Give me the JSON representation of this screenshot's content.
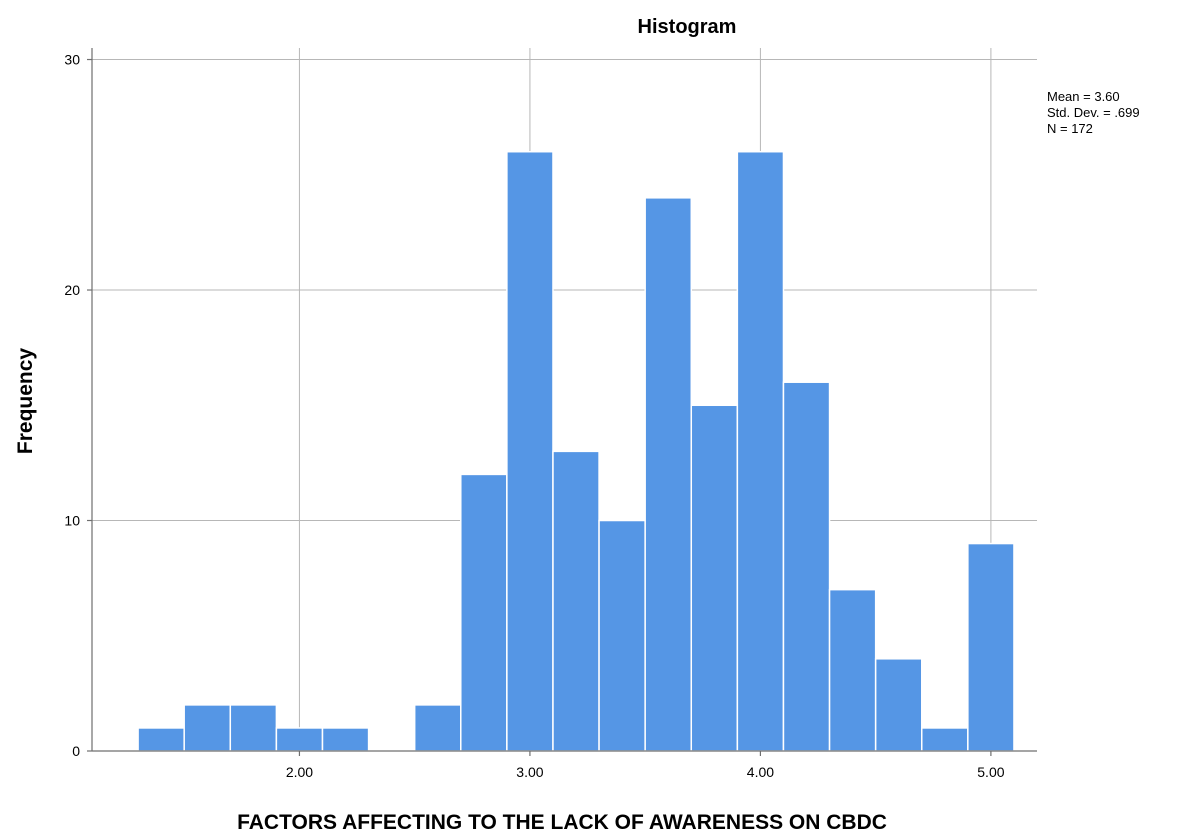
{
  "chart_data": {
    "type": "bar",
    "title": "Histogram",
    "xlabel": "FACTORS AFFECTING TO THE LACK OF AWARENESS ON CBDC",
    "ylabel": "Frequency",
    "bar_color": "#5596e5",
    "grid": true,
    "xlim": [
      1.1,
      5.2
    ],
    "ylim": [
      0,
      30.5
    ],
    "x_ticks": [
      {
        "value": 2,
        "label": "2.00"
      },
      {
        "value": 3,
        "label": "3.00"
      },
      {
        "value": 4,
        "label": "4.00"
      },
      {
        "value": 5,
        "label": "5.00"
      }
    ],
    "y_ticks": [
      {
        "value": 0,
        "label": "0"
      },
      {
        "value": 10,
        "label": "10"
      },
      {
        "value": 20,
        "label": "20"
      },
      {
        "value": 30,
        "label": "30"
      }
    ],
    "bin_width": 0.2,
    "bins": [
      {
        "start": 1.3,
        "count": 1
      },
      {
        "start": 1.5,
        "count": 2
      },
      {
        "start": 1.7,
        "count": 2
      },
      {
        "start": 1.9,
        "count": 1
      },
      {
        "start": 2.1,
        "count": 1
      },
      {
        "start": 2.5,
        "count": 2
      },
      {
        "start": 2.7,
        "count": 12
      },
      {
        "start": 2.9,
        "count": 26
      },
      {
        "start": 3.1,
        "count": 13
      },
      {
        "start": 3.3,
        "count": 10
      },
      {
        "start": 3.5,
        "count": 24
      },
      {
        "start": 3.7,
        "count": 15
      },
      {
        "start": 3.9,
        "count": 26
      },
      {
        "start": 4.1,
        "count": 16
      },
      {
        "start": 4.3,
        "count": 7
      },
      {
        "start": 4.5,
        "count": 4
      },
      {
        "start": 4.7,
        "count": 1
      },
      {
        "start": 4.9,
        "count": 9
      }
    ],
    "stats": {
      "mean": "Mean = 3.60",
      "std_dev": "Std. Dev. = .699",
      "n": "N = 172"
    }
  }
}
